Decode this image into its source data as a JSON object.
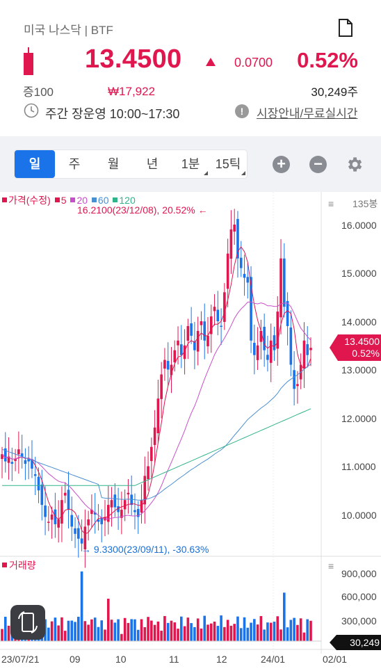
{
  "header": {
    "market": "미국 나스닥 | BTF",
    "price": "13.4500",
    "change": "0.0700",
    "change_pct": "0.52%",
    "margin": "증100",
    "krw_price": "₩17,922",
    "volume": "30,249주",
    "hours": "주간 장운영 10:00~17:30",
    "market_info_link": "시장안내/무료실시간"
  },
  "toolbar": {
    "tabs": [
      "일",
      "주",
      "월",
      "년",
      "1분",
      "15틱"
    ],
    "active_tab": "일",
    "zoom_in": "+",
    "zoom_out": "−"
  },
  "chart": {
    "legend_title": "가격(수정)",
    "ma_labels": [
      "5",
      "20",
      "60",
      "120"
    ],
    "bars_count": "135봉",
    "y_ticks": [
      "16.0000",
      "15.0000",
      "14.0000",
      "13.0000",
      "12.0000",
      "11.0000",
      "10.0000"
    ],
    "high_label": "16.2100(23/12/08), 20.52% ←",
    "low_label": "→ 9.3300(23/09/11), -30.63%",
    "price_tag_value": "13.4500",
    "price_tag_pct": "0.52%",
    "volume_title": "거래량",
    "volume_ticks": [
      "900,000",
      "600,000",
      "300,000"
    ],
    "volume_tag": "30,249",
    "x_ticks": [
      "23/07/21",
      "09",
      "10",
      "11",
      "12",
      "24/01",
      "02/01"
    ]
  },
  "colors": {
    "up": "#e0164f",
    "down": "#1a73e8",
    "accent": "#1a73e8",
    "ma5": "#e0164f",
    "ma20": "#c94fc9",
    "ma60": "#4a8fd0",
    "ma120": "#2fb38a"
  },
  "chart_data": {
    "type": "candlestick",
    "series_name": "가격(수정)",
    "ylim": [
      9.2,
      16.5
    ],
    "high": {
      "value": 16.21,
      "date": "23/12/08",
      "pct": 20.52
    },
    "low": {
      "value": 9.33,
      "date": "23/09/11",
      "pct": -30.63
    },
    "last": 13.45,
    "volume_last": 30249
  }
}
